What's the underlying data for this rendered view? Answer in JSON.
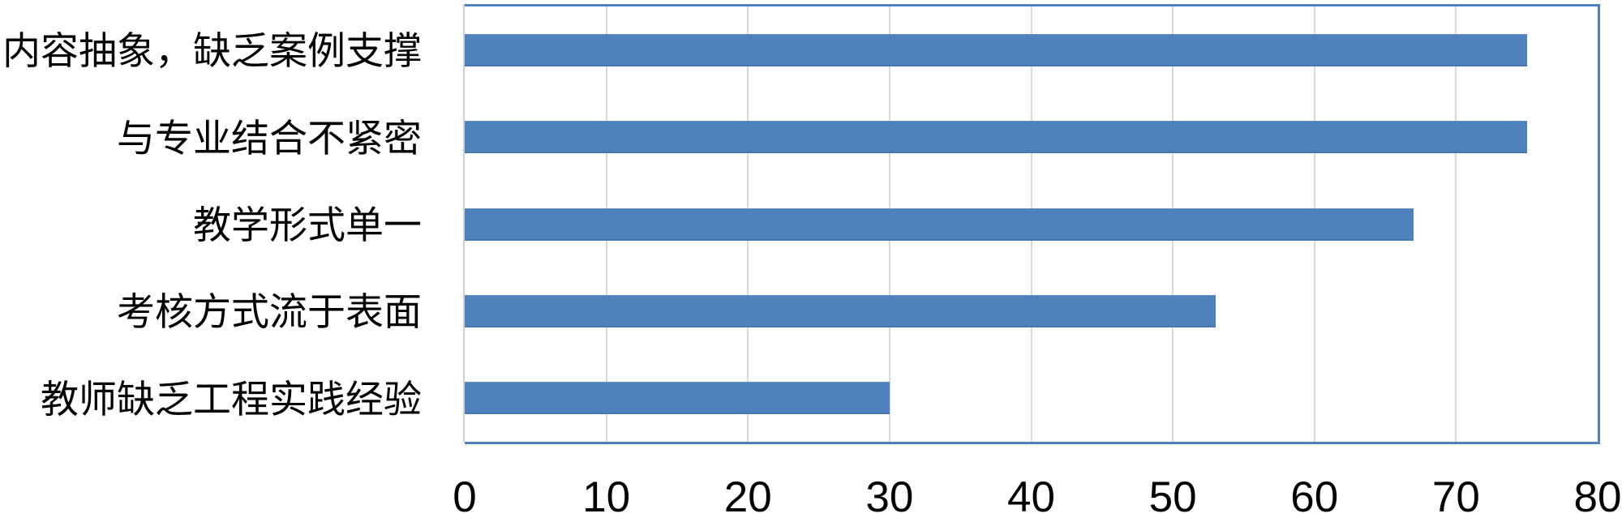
{
  "chart_data": {
    "type": "bar",
    "orientation": "horizontal",
    "title": "",
    "xlabel": "",
    "ylabel": "",
    "categories": [
      "内容抽象，缺乏案例支撑",
      "与专业结合不紧密",
      "教学形式单一",
      "考核方式流于表面",
      "教师缺乏工程实践经验"
    ],
    "values": [
      75,
      75,
      67,
      53,
      30
    ],
    "xlim": [
      0,
      80
    ],
    "x_ticks": [
      0,
      10,
      20,
      30,
      40,
      50,
      60,
      70,
      80
    ],
    "grid": true,
    "legend": false,
    "colors": {
      "bar_fill": "#4f81bd",
      "plot_border": "#4f81bd",
      "gridline": "#d9d9d9",
      "axis_line": "#cfcfcf",
      "text": "#000000"
    }
  }
}
